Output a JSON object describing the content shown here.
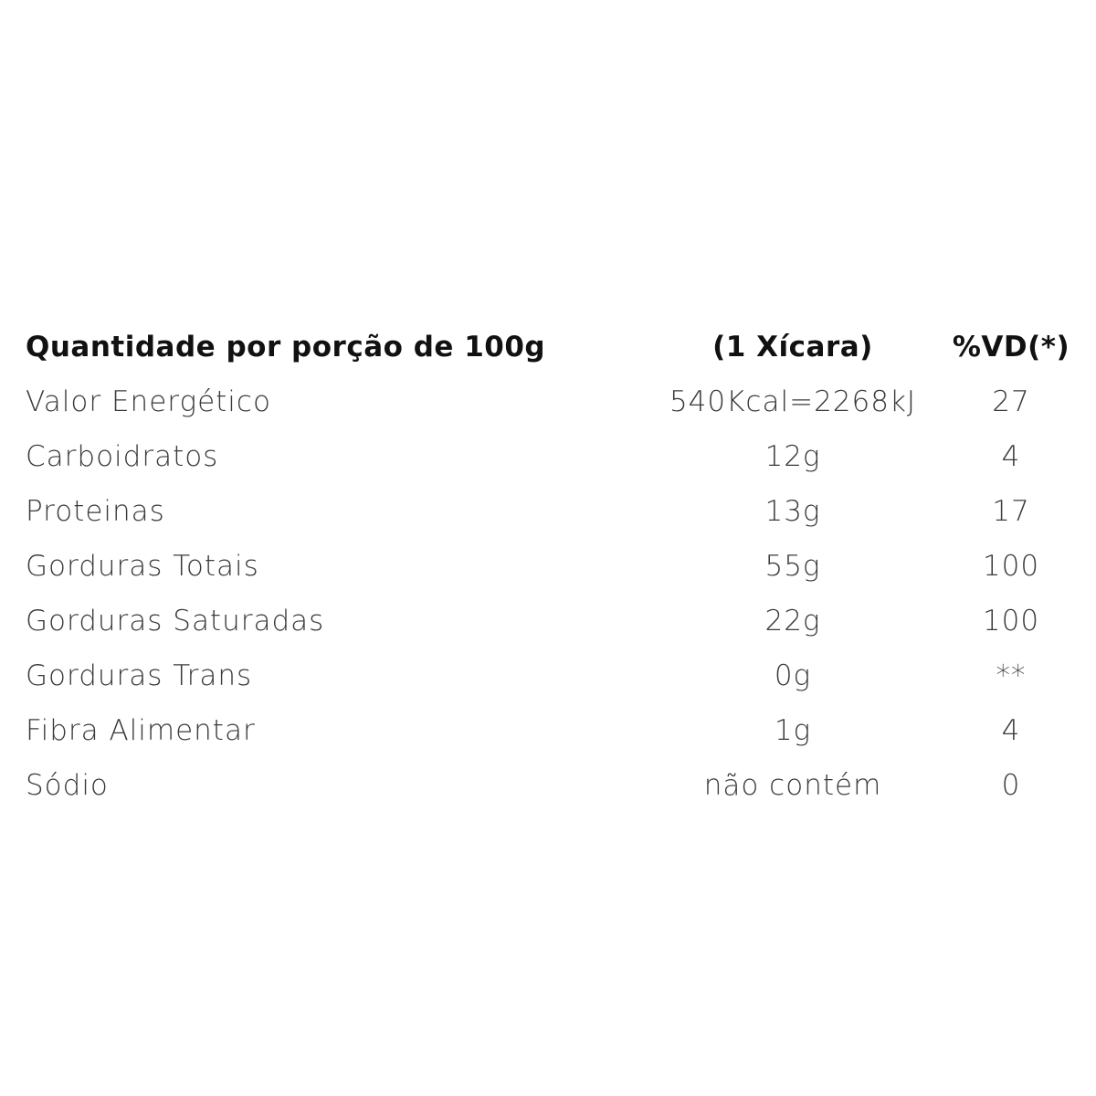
{
  "header": {
    "label": "Quantidade por porção de 100g",
    "amount": "(1 Xícara)",
    "dv": "%VD(*)"
  },
  "rows": [
    {
      "label": "Valor Energético",
      "amount": "540Kcal=2268kJ",
      "dv": "27"
    },
    {
      "label": "Carboidratos",
      "amount": "12g",
      "dv": "4"
    },
    {
      "label": "Proteinas",
      "amount": "13g",
      "dv": "17"
    },
    {
      "label": "Gorduras Totais",
      "amount": "55g",
      "dv": "100"
    },
    {
      "label": "Gorduras Saturadas",
      "amount": "22g",
      "dv": "100"
    },
    {
      "label": "Gorduras Trans",
      "amount": "0g",
      "dv": "**"
    },
    {
      "label": "Fibra Alimentar",
      "amount": "1g",
      "dv": "4"
    },
    {
      "label": "Sódio",
      "amount": "não contém",
      "dv": "0"
    }
  ]
}
